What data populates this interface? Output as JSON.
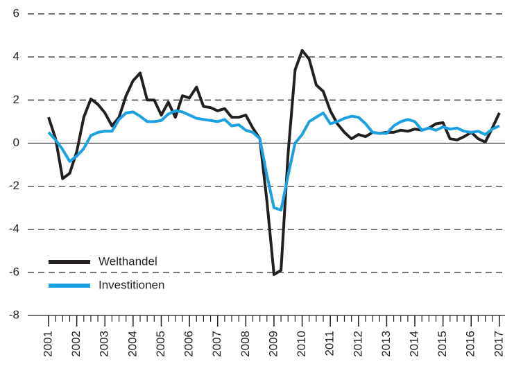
{
  "chart_data": {
    "type": "line",
    "x": [
      2001,
      2001.25,
      2001.5,
      2001.75,
      2002,
      2002.25,
      2002.5,
      2002.75,
      2003,
      2003.25,
      2003.5,
      2003.75,
      2004,
      2004.25,
      2004.5,
      2004.75,
      2005,
      2005.25,
      2005.5,
      2005.75,
      2006,
      2006.25,
      2006.5,
      2006.75,
      2007,
      2007.25,
      2007.5,
      2007.75,
      2008,
      2008.25,
      2008.5,
      2008.75,
      2009,
      2009.25,
      2009.5,
      2009.75,
      2010,
      2010.25,
      2010.5,
      2010.75,
      2011,
      2011.25,
      2011.5,
      2011.75,
      2012,
      2012.25,
      2012.5,
      2012.75,
      2013,
      2013.25,
      2013.5,
      2013.75,
      2014,
      2014.25,
      2014.5,
      2014.75,
      2015,
      2015.25,
      2015.5,
      2015.75,
      2016,
      2016.25,
      2016.5,
      2016.75,
      2017
    ],
    "series": [
      {
        "name": "Welthandel",
        "color": "#231f20",
        "values": [
          1.2,
          0.2,
          -1.65,
          -1.4,
          -0.4,
          1.2,
          2.05,
          1.8,
          1.4,
          0.8,
          1.2,
          2.2,
          2.9,
          3.25,
          2.0,
          2.0,
          1.3,
          1.9,
          1.2,
          2.2,
          2.1,
          2.6,
          1.7,
          1.65,
          1.5,
          1.6,
          1.2,
          1.2,
          1.3,
          0.7,
          0.2,
          -2.7,
          -6.1,
          -5.9,
          -0.5,
          3.4,
          4.3,
          3.9,
          2.7,
          2.4,
          1.5,
          0.9,
          0.5,
          0.2,
          0.4,
          0.3,
          0.5,
          0.45,
          0.5,
          0.5,
          0.6,
          0.55,
          0.65,
          0.6,
          0.7,
          0.9,
          0.95,
          0.2,
          0.15,
          0.3,
          0.5,
          0.2,
          0.05,
          0.7,
          1.4
        ]
      },
      {
        "name": "Investitionen",
        "color": "#1ba1e2",
        "values": [
          0.5,
          0.15,
          -0.3,
          -0.85,
          -0.6,
          -0.25,
          0.35,
          0.5,
          0.55,
          0.55,
          1.1,
          1.4,
          1.45,
          1.25,
          1.0,
          1.0,
          1.05,
          1.35,
          1.5,
          1.45,
          1.3,
          1.15,
          1.1,
          1.05,
          1.0,
          1.1,
          0.8,
          0.85,
          0.6,
          0.5,
          0.2,
          -1.5,
          -3.0,
          -3.1,
          -1.5,
          0.0,
          0.4,
          1.0,
          1.2,
          1.4,
          0.9,
          1.0,
          1.15,
          1.25,
          1.2,
          0.9,
          0.5,
          0.45,
          0.45,
          0.8,
          1.0,
          1.1,
          1.0,
          0.6,
          0.7,
          0.6,
          0.75,
          0.65,
          0.7,
          0.55,
          0.5,
          0.55,
          0.4,
          0.65,
          0.8
        ]
      }
    ],
    "xlim": [
      2000.95,
      2017.2
    ],
    "xticks": [
      2001,
      2002,
      2003,
      2004,
      2005,
      2006,
      2007,
      2008,
      2009,
      2010,
      2011,
      2012,
      2013,
      2014,
      2015,
      2016,
      2017
    ],
    "ylim": [
      -8,
      6
    ],
    "yticks": [
      -8,
      -6,
      -4,
      -2,
      0,
      2,
      4,
      6
    ],
    "grid": true,
    "legend": "lower left"
  }
}
